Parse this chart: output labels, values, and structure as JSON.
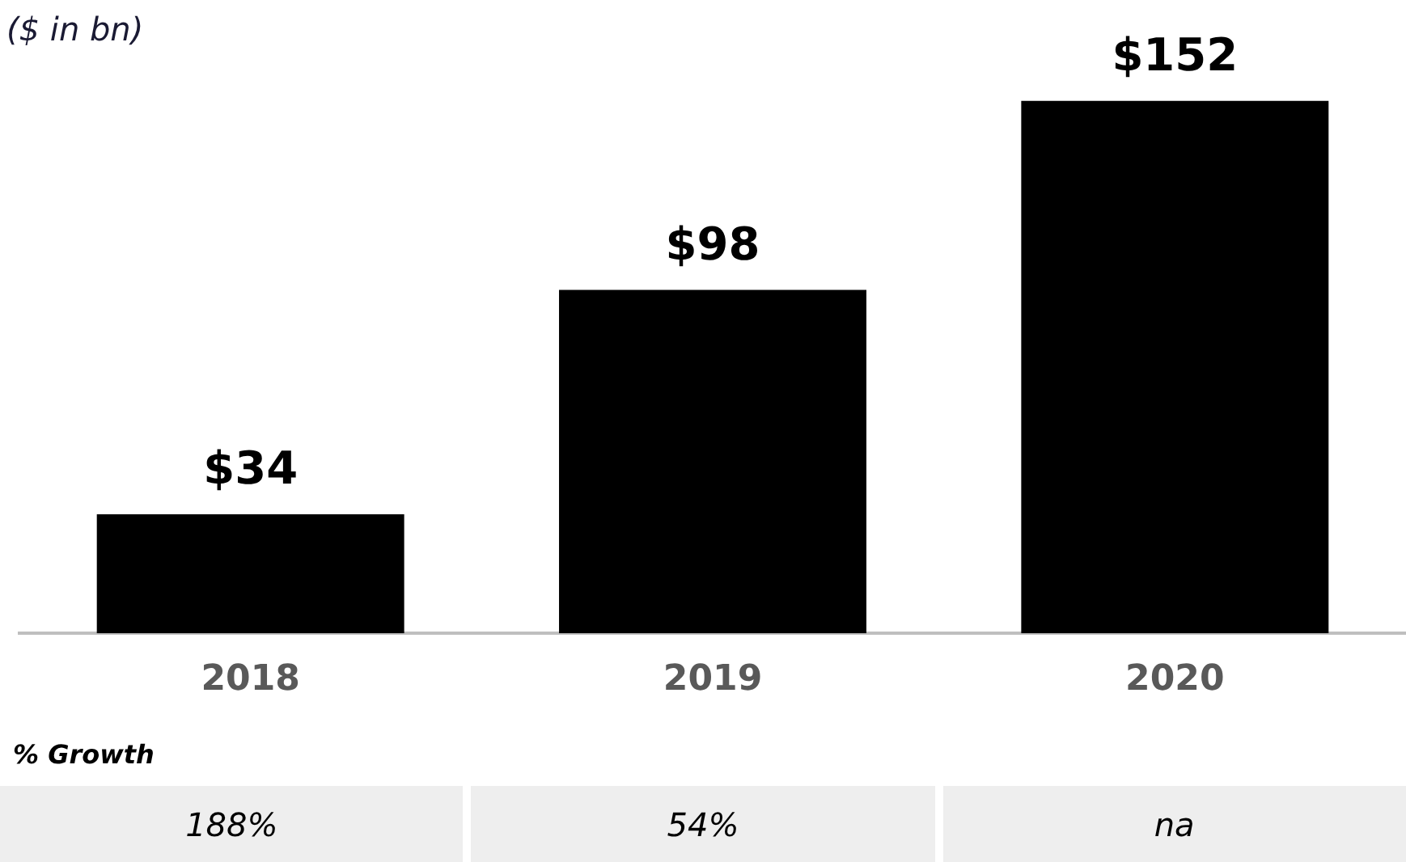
{
  "chart_data": {
    "type": "bar",
    "title": "($ in bn)",
    "categories": [
      "2018",
      "2019",
      "2020"
    ],
    "values": [
      34,
      98,
      152
    ],
    "value_labels": [
      "$34",
      "$98",
      "$152"
    ],
    "color": "#000000",
    "tick_labels": "x",
    "grid": false,
    "legend": false,
    "annotations": [
      "% Growth",
      "188%",
      "54%",
      "na"
    ]
  }
}
